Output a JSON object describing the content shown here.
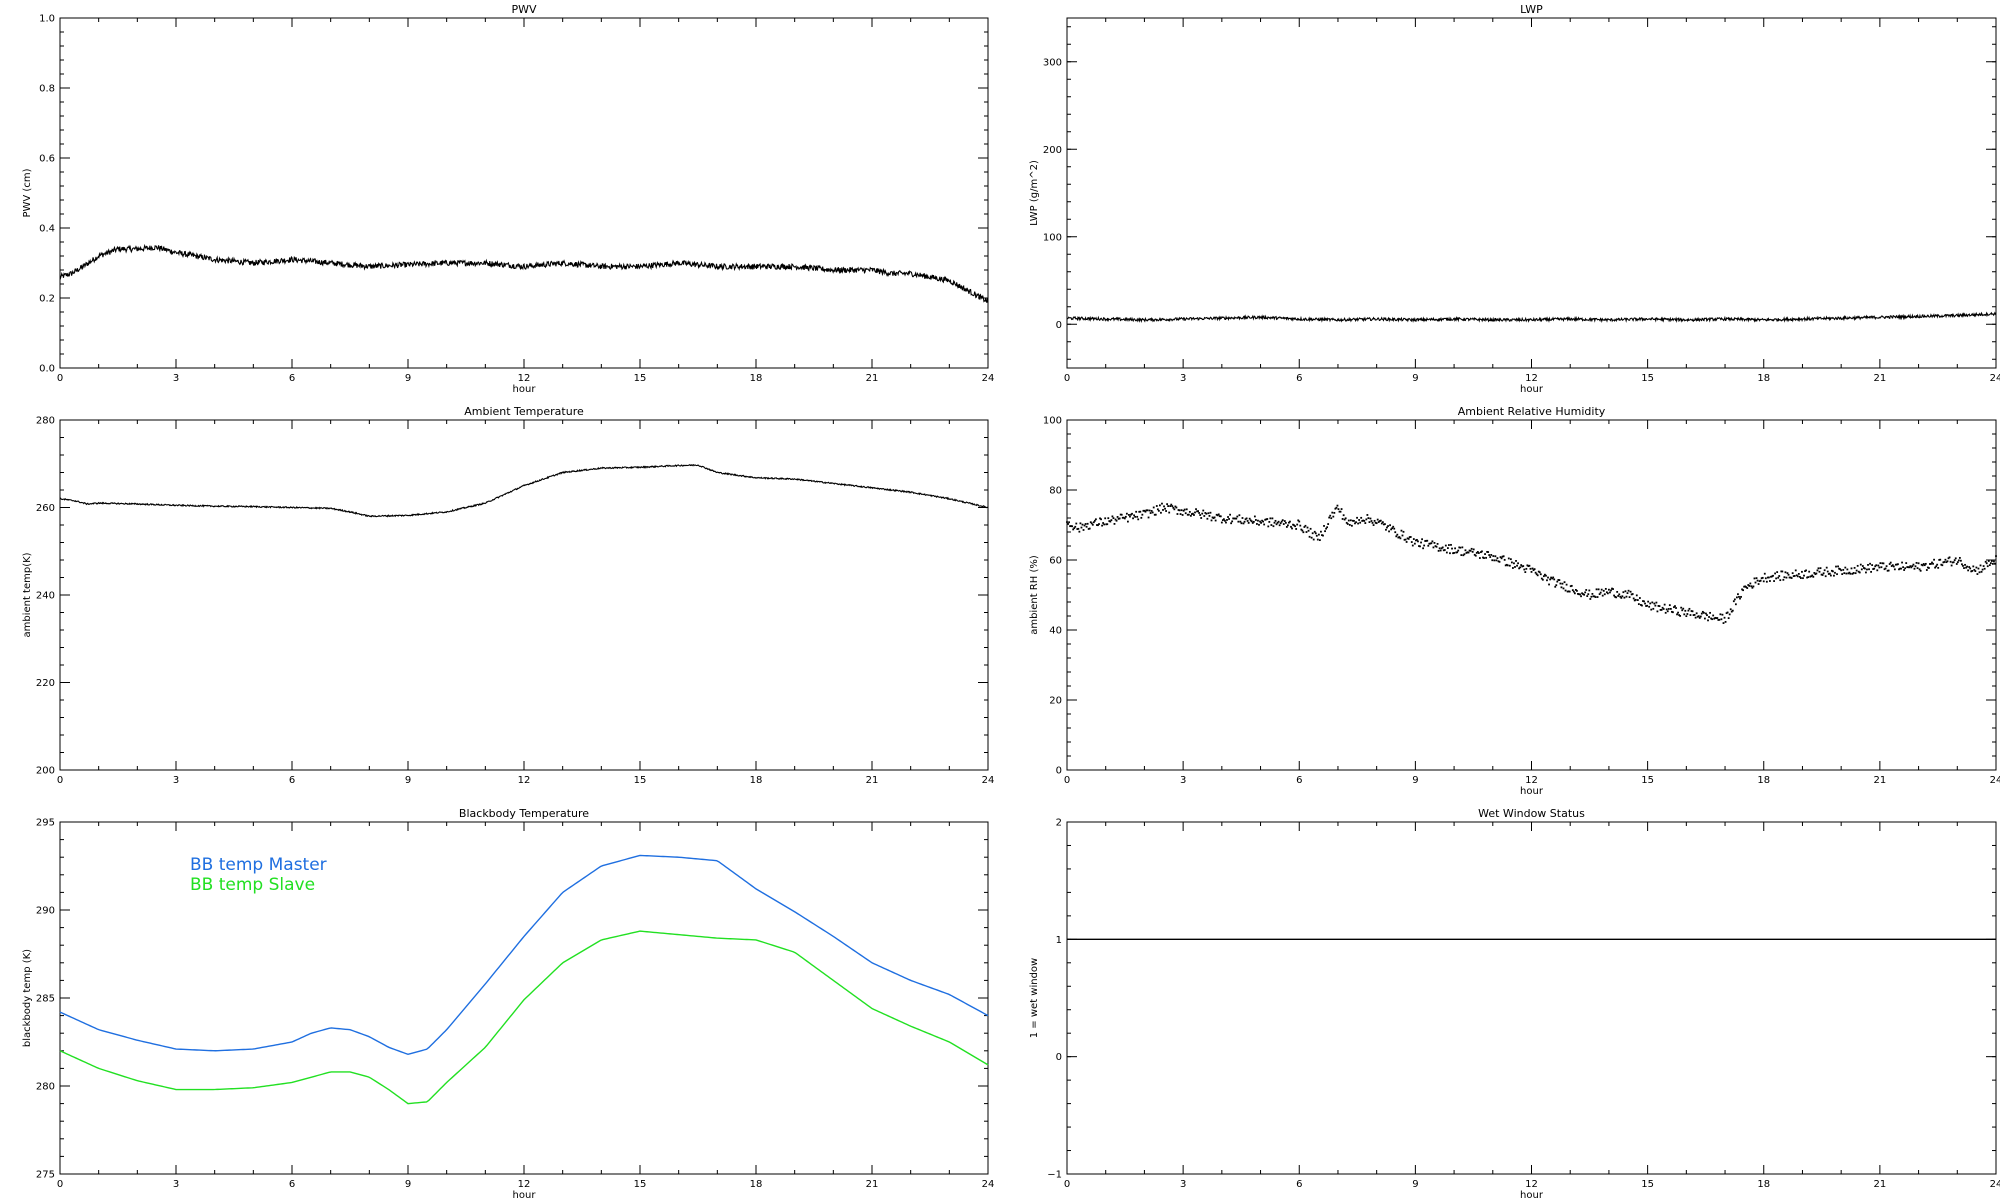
{
  "chart_data": [
    {
      "type": "line",
      "title": "PWV",
      "xlabel": "hour",
      "ylabel": "PWV (cm)",
      "xlim": [
        0,
        24
      ],
      "ylim": [
        0.0,
        1.0
      ],
      "xticks": [
        "0",
        "3",
        "6",
        "9",
        "12",
        "15",
        "18",
        "21",
        "24"
      ],
      "yticks": [
        "0.0",
        "0.2",
        "0.4",
        "0.6",
        "0.8",
        "1.0"
      ],
      "series": [
        {
          "color": "#000000",
          "noise": 0.008,
          "x": [
            0,
            0.3,
            0.6,
            1,
            1.5,
            2,
            2.5,
            3,
            3.5,
            4,
            5,
            6,
            7,
            8,
            9,
            10,
            11,
            12,
            13,
            14,
            15,
            16,
            17,
            18,
            19,
            20,
            21,
            21.5,
            22,
            22.5,
            23,
            23.5,
            24
          ],
          "y": [
            0.26,
            0.27,
            0.29,
            0.32,
            0.34,
            0.34,
            0.345,
            0.33,
            0.32,
            0.31,
            0.3,
            0.31,
            0.3,
            0.29,
            0.295,
            0.3,
            0.3,
            0.29,
            0.3,
            0.29,
            0.29,
            0.3,
            0.29,
            0.29,
            0.29,
            0.28,
            0.28,
            0.27,
            0.27,
            0.26,
            0.25,
            0.22,
            0.19
          ]
        }
      ]
    },
    {
      "type": "line",
      "title": "LWP",
      "xlabel": "hour",
      "ylabel": "LWP (g/m^2)",
      "xlim": [
        0,
        24
      ],
      "ylim": [
        -50,
        350
      ],
      "xticks": [
        "0",
        "3",
        "6",
        "9",
        "12",
        "15",
        "18",
        "21",
        "24"
      ],
      "yticks": [
        "0",
        "100",
        "200",
        "300"
      ],
      "yticks_values": [
        0,
        100,
        200,
        300
      ],
      "series": [
        {
          "color": "#000000",
          "noise": 1.6,
          "x": [
            0,
            1,
            2,
            3,
            4,
            5,
            6,
            7,
            8,
            9,
            10,
            11,
            12,
            13,
            14,
            15,
            16,
            17,
            18,
            19,
            20,
            21,
            22,
            23,
            24
          ],
          "y": [
            7,
            6,
            5,
            6,
            7,
            8,
            6,
            5,
            6,
            5,
            6,
            5,
            5,
            6,
            5,
            6,
            5,
            6,
            5,
            6,
            7,
            8,
            9,
            10,
            12
          ]
        }
      ]
    },
    {
      "type": "line",
      "title": "Ambient Temperature",
      "xlabel": "",
      "ylabel": "ambient temp(K)",
      "xlim": [
        0,
        24
      ],
      "ylim": [
        200,
        280
      ],
      "xticks": [
        "0",
        "3",
        "6",
        "9",
        "12",
        "15",
        "18",
        "21",
        "24"
      ],
      "yticks": [
        "200",
        "220",
        "240",
        "260",
        "280"
      ],
      "series": [
        {
          "color": "#000000",
          "noise": 0.15,
          "x": [
            0,
            0.4,
            0.7,
            1,
            2,
            3,
            4,
            5,
            6,
            7,
            7.5,
            8,
            9,
            10,
            11,
            11.5,
            12,
            12.5,
            13,
            14,
            15,
            16,
            16.5,
            17,
            18,
            19,
            20,
            21,
            22,
            23,
            24
          ],
          "y": [
            262,
            261.5,
            260.8,
            261,
            260.8,
            260.5,
            260.3,
            260.2,
            260,
            259.8,
            259,
            258,
            258.2,
            259,
            261,
            263,
            265,
            266.5,
            268,
            269,
            269.2,
            269.6,
            269.7,
            268,
            266.8,
            266.5,
            265.5,
            264.5,
            263.5,
            262,
            260
          ]
        }
      ]
    },
    {
      "type": "scatter",
      "title": "Ambient Relative Humidity",
      "xlabel": "hour",
      "ylabel": "ambient RH (%)",
      "xlim": [
        0,
        24
      ],
      "ylim": [
        0,
        100
      ],
      "xticks": [
        "0",
        "3",
        "6",
        "9",
        "12",
        "15",
        "18",
        "21",
        "24"
      ],
      "yticks": [
        "0",
        "20",
        "40",
        "60",
        "80",
        "100"
      ],
      "series": [
        {
          "color": "#000000",
          "noise": 1.3,
          "x": [
            0,
            0.3,
            0.5,
            1,
            1.5,
            2,
            2.5,
            3,
            3.5,
            4,
            5,
            6,
            6.5,
            6.8,
            7,
            7.3,
            7.6,
            8,
            8.5,
            9,
            10,
            11,
            12,
            12.5,
            13,
            13.5,
            14,
            14.5,
            15,
            15.5,
            16,
            16.5,
            17,
            17.5,
            18,
            19,
            20,
            21,
            22,
            23,
            23.5,
            24
          ],
          "y": [
            71,
            69,
            70,
            71,
            72,
            73,
            75,
            74,
            73,
            72,
            71,
            70,
            66,
            72,
            75,
            70,
            72,
            71,
            68,
            65,
            63,
            61,
            57,
            54,
            52,
            50,
            51,
            50,
            47,
            46,
            45,
            44,
            43,
            52,
            55,
            56,
            57,
            58,
            58,
            60,
            57,
            60
          ]
        }
      ]
    },
    {
      "type": "line",
      "title": "Blackbody Temperature",
      "xlabel": "hour",
      "ylabel": "blackbody temp (K)",
      "xlim": [
        0,
        24
      ],
      "ylim": [
        275,
        295
      ],
      "xticks": [
        "0",
        "3",
        "6",
        "9",
        "12",
        "15",
        "18",
        "21",
        "24"
      ],
      "yticks": [
        "275",
        "280",
        "285",
        "290",
        "295"
      ],
      "legend": [
        "BB temp Master",
        "BB temp Slave"
      ],
      "legend_colors": [
        "#1f6fe0",
        "#22e022"
      ],
      "series": [
        {
          "name": "BB temp Master",
          "color": "#1f6fe0",
          "noise": 0,
          "x": [
            0,
            0.5,
            1,
            2,
            3,
            4,
            5,
            6,
            6.5,
            7,
            7.5,
            8,
            8.5,
            9,
            9.5,
            10,
            11,
            12,
            13,
            14,
            15,
            16,
            17,
            18,
            19,
            20,
            21,
            22,
            23,
            24
          ],
          "y": [
            284.2,
            283.7,
            283.2,
            282.6,
            282.1,
            282.0,
            282.1,
            282.5,
            283.0,
            283.3,
            283.2,
            282.8,
            282.2,
            281.8,
            282.1,
            283.2,
            285.8,
            288.5,
            291.0,
            292.5,
            293.1,
            293.0,
            292.8,
            291.2,
            289.9,
            288.5,
            287.0,
            286.0,
            285.2,
            284.0
          ]
        },
        {
          "name": "BB temp Slave",
          "color": "#22e022",
          "noise": 0,
          "x": [
            0,
            0.5,
            1,
            2,
            3,
            4,
            5,
            6,
            6.5,
            7,
            7.5,
            8,
            8.5,
            9,
            9.5,
            10,
            11,
            12,
            13,
            14,
            15,
            16,
            17,
            18,
            19,
            20,
            21,
            22,
            23,
            24
          ],
          "y": [
            282.0,
            281.5,
            281.0,
            280.3,
            279.8,
            279.8,
            279.9,
            280.2,
            280.5,
            280.8,
            280.8,
            280.5,
            279.8,
            279.0,
            279.1,
            280.2,
            282.2,
            284.9,
            287.0,
            288.3,
            288.8,
            288.6,
            288.4,
            288.3,
            287.6,
            286.0,
            284.4,
            283.4,
            282.5,
            281.2
          ]
        }
      ]
    },
    {
      "type": "line",
      "title": "Wet Window Status",
      "xlabel": "hour",
      "ylabel": "1 = wet window",
      "xlim": [
        0,
        24
      ],
      "ylim": [
        -1,
        2
      ],
      "xticks": [
        "0",
        "3",
        "6",
        "9",
        "12",
        "15",
        "18",
        "21",
        "24"
      ],
      "yticks": [
        "−1",
        "0",
        "1",
        "2"
      ],
      "series": [
        {
          "color": "#000000",
          "noise": 0,
          "x": [
            0,
            24
          ],
          "y": [
            1,
            1
          ]
        }
      ]
    }
  ]
}
